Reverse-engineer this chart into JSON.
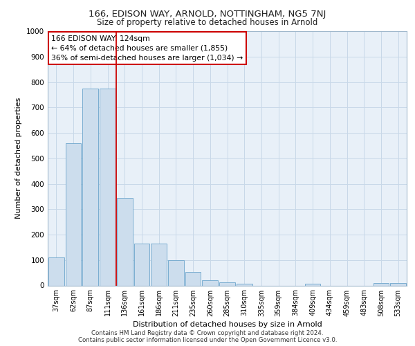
{
  "title1": "166, EDISON WAY, ARNOLD, NOTTINGHAM, NG5 7NJ",
  "title2": "Size of property relative to detached houses in Arnold",
  "xlabel": "Distribution of detached houses by size in Arnold",
  "ylabel": "Number of detached properties",
  "categories": [
    "37sqm",
    "62sqm",
    "87sqm",
    "111sqm",
    "136sqm",
    "161sqm",
    "186sqm",
    "211sqm",
    "235sqm",
    "260sqm",
    "285sqm",
    "310sqm",
    "335sqm",
    "359sqm",
    "384sqm",
    "409sqm",
    "434sqm",
    "459sqm",
    "483sqm",
    "508sqm",
    "533sqm"
  ],
  "values": [
    110,
    560,
    775,
    775,
    345,
    165,
    165,
    98,
    52,
    20,
    12,
    8,
    0,
    0,
    0,
    8,
    0,
    0,
    0,
    10,
    10
  ],
  "bar_color": "#ccdded",
  "bar_edge_color": "#7aadd0",
  "property_line_x": 3.5,
  "annotation_text": "166 EDISON WAY: 124sqm\n← 64% of detached houses are smaller (1,855)\n36% of semi-detached houses are larger (1,034) →",
  "annotation_box_color": "#ffffff",
  "annotation_box_edge": "#cc0000",
  "property_line_color": "#cc0000",
  "grid_color": "#c8d8e8",
  "background_color": "#e8f0f8",
  "ylim": [
    0,
    1000
  ],
  "yticks": [
    0,
    100,
    200,
    300,
    400,
    500,
    600,
    700,
    800,
    900,
    1000
  ],
  "footer_line1": "Contains HM Land Registry data © Crown copyright and database right 2024.",
  "footer_line2": "Contains public sector information licensed under the Open Government Licence v3.0."
}
